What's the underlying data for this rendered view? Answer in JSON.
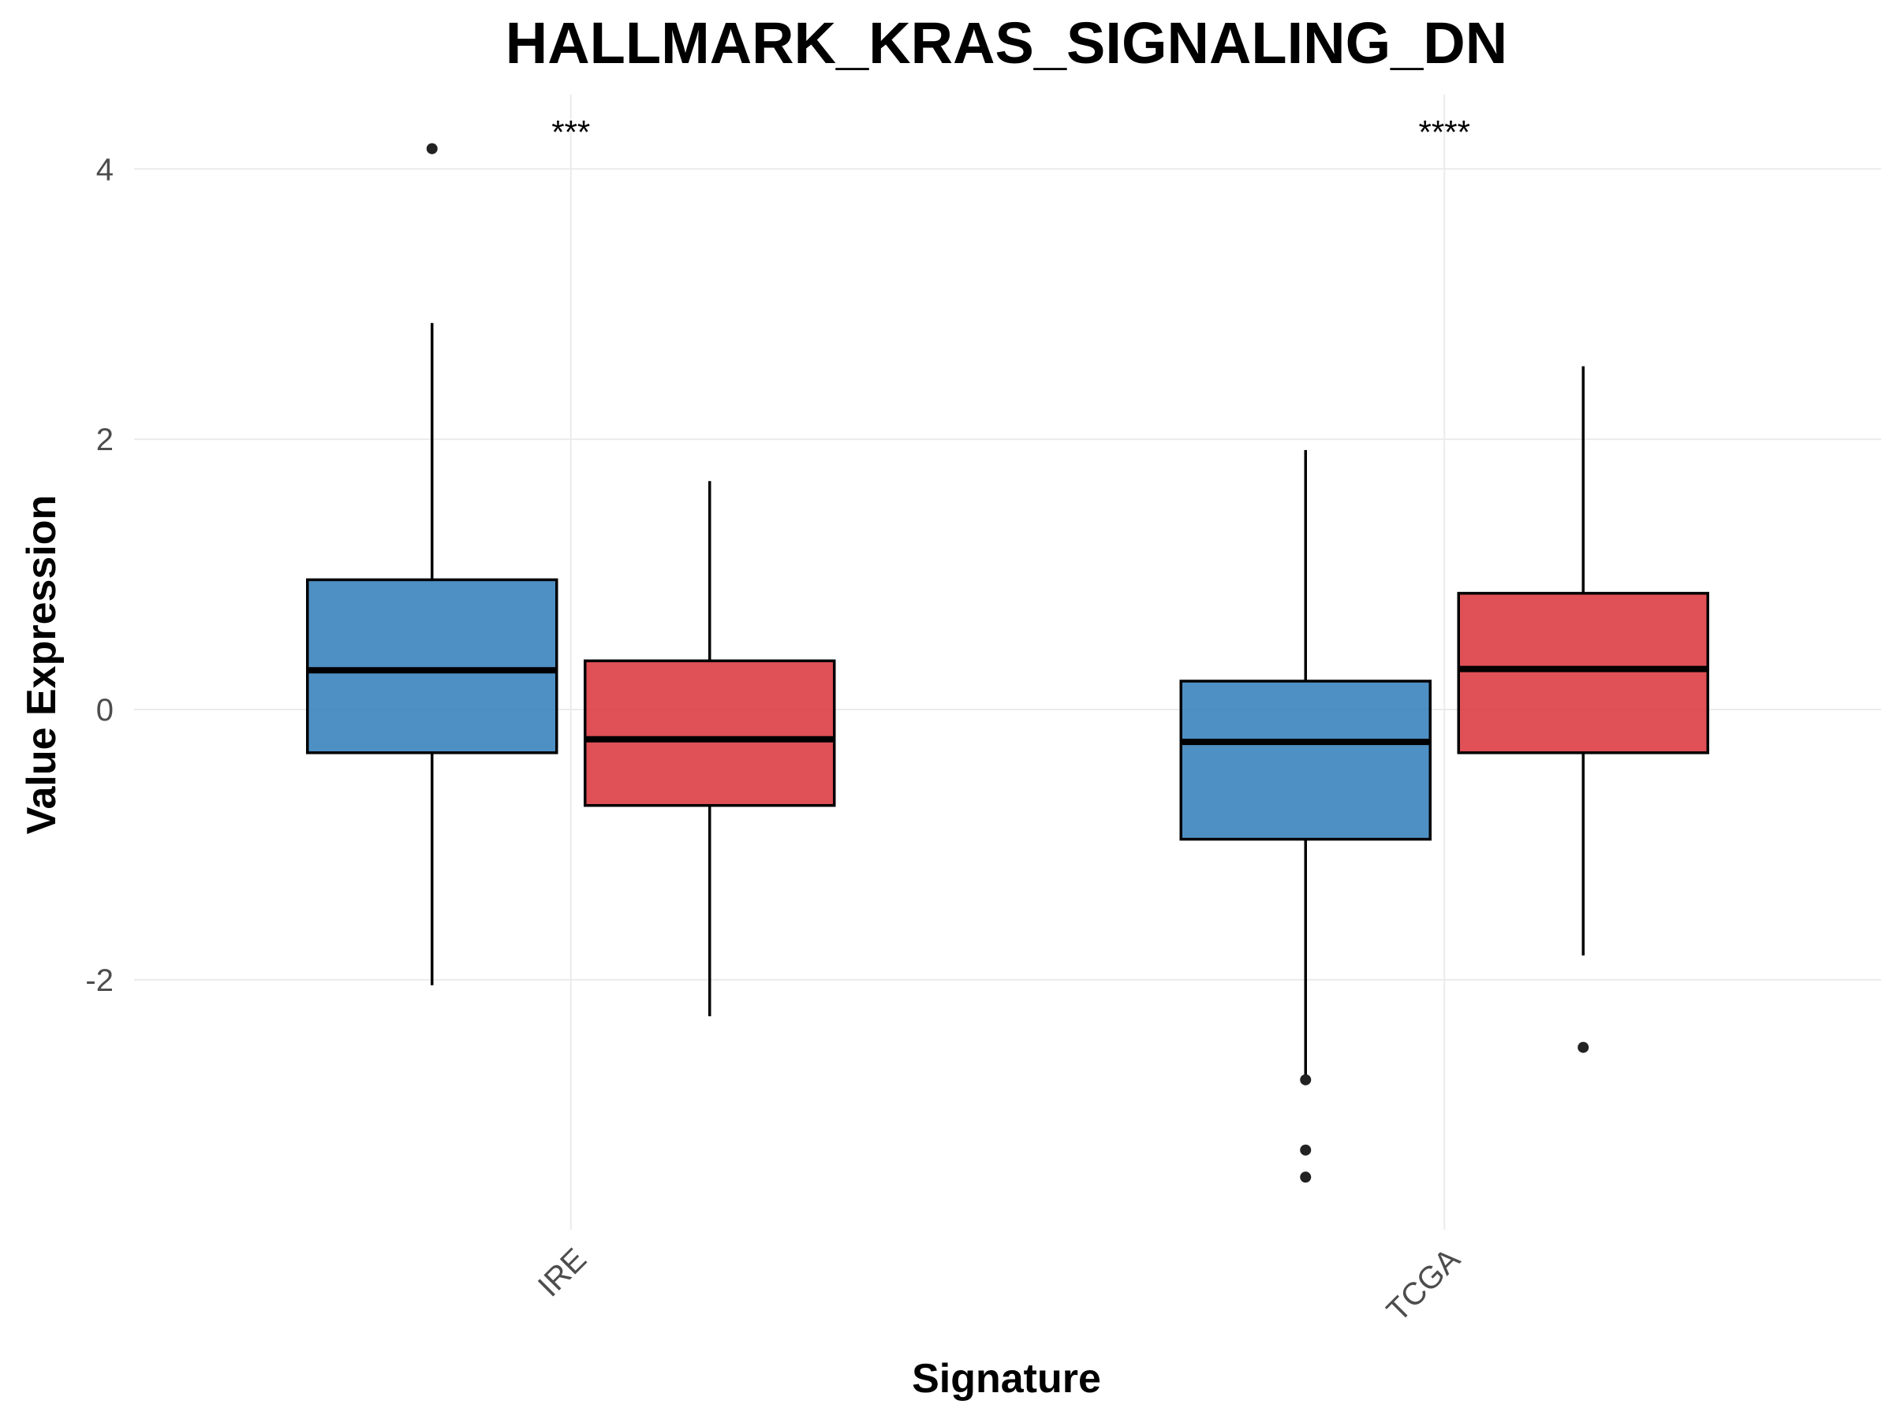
{
  "chart_data": {
    "type": "box",
    "title": "HALLMARK_KRAS_SIGNALING_DN",
    "xlabel": "Signature",
    "ylabel": "Value Expression",
    "categories": [
      "IRE",
      "TCGA"
    ],
    "ylim": [
      -3.85,
      4.55
    ],
    "y_ticks": [
      -2,
      0,
      2,
      4
    ],
    "y_tick_labels": [
      "-2",
      "0",
      "2",
      "4"
    ],
    "grid": true,
    "colors": [
      "#2f7dba",
      "#d93338"
    ],
    "significance": [
      {
        "category": "IRE",
        "label": "***"
      },
      {
        "category": "TCGA",
        "label": "****"
      }
    ],
    "boxes": [
      {
        "category": "IRE",
        "group": 0,
        "whisker_low": -2.04,
        "q1": -0.32,
        "median": 0.29,
        "q3": 0.96,
        "whisker_high": 2.86,
        "outliers": [
          4.15
        ]
      },
      {
        "category": "IRE",
        "group": 1,
        "whisker_low": -2.27,
        "q1": -0.71,
        "median": -0.22,
        "q3": 0.36,
        "whisker_high": 1.69,
        "outliers": []
      },
      {
        "category": "TCGA",
        "group": 0,
        "whisker_low": -2.74,
        "q1": -0.96,
        "median": -0.24,
        "q3": 0.21,
        "whisker_high": 1.92,
        "outliers": [
          -2.74,
          -3.26,
          -3.46
        ]
      },
      {
        "category": "TCGA",
        "group": 1,
        "whisker_low": -1.82,
        "q1": -0.32,
        "median": 0.3,
        "q3": 0.86,
        "whisker_high": 2.54,
        "outliers": [
          -2.5
        ]
      }
    ]
  }
}
